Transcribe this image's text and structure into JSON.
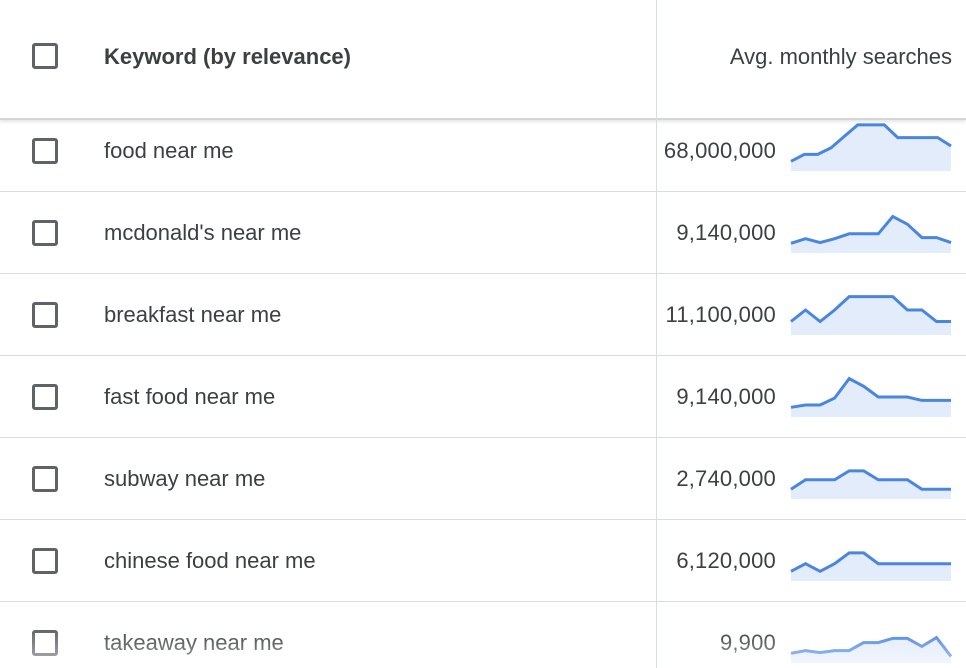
{
  "header": {
    "keyword_label": "Keyword (by relevance)",
    "searches_label": "Avg. monthly searches"
  },
  "colors": {
    "trend_line": "#4a86e0",
    "trend_fill": "#e3ecfb",
    "divider": "#dadce0",
    "text": "#3c4043"
  },
  "rows": [
    {
      "keyword": "food near me",
      "searches": "68,000,000",
      "trend": [
        2,
        3.8,
        3.8,
        5.5,
        8.5,
        11.5,
        11.5,
        11.5,
        8.2,
        8.2,
        8.2,
        8.2,
        6
      ]
    },
    {
      "keyword": "mcdonald's near me",
      "searches": "9,140,000",
      "trend": [
        2,
        3.2,
        2.2,
        3.2,
        4.5,
        4.5,
        4.5,
        9,
        7,
        3.5,
        3.5,
        2.2
      ]
    },
    {
      "keyword": "breakfast near me",
      "searches": "11,100,000",
      "trend": [
        3,
        6,
        3,
        6,
        9.5,
        9.5,
        9.5,
        9.5,
        6,
        6,
        3,
        3
      ]
    },
    {
      "keyword": "fast food near me",
      "searches": "9,140,000",
      "trend": [
        2,
        2.6,
        2.6,
        4.4,
        9.5,
        7.5,
        4.7,
        4.7,
        4.7,
        3.8,
        3.8,
        3.8
      ]
    },
    {
      "keyword": "subway near me",
      "searches": "2,740,000",
      "trend": [
        2,
        4.5,
        4.5,
        4.5,
        6.8,
        6.8,
        4.5,
        4.5,
        4.5,
        2,
        2,
        2
      ]
    },
    {
      "keyword": "chinese food near me",
      "searches": "6,120,000",
      "trend": [
        2,
        4,
        2,
        4,
        6.8,
        6.8,
        4,
        4,
        4,
        4,
        4,
        4
      ]
    },
    {
      "keyword": "takeaway near me",
      "searches": "9,900",
      "trend": [
        2,
        2.7,
        2.2,
        2.7,
        2.7,
        4.8,
        4.8,
        5.9,
        5.9,
        3.8,
        6.1,
        1.2
      ]
    }
  ]
}
